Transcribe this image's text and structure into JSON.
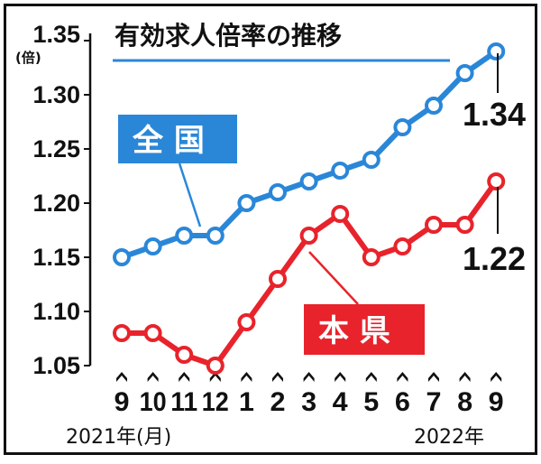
{
  "chart_data": {
    "type": "line",
    "title": "有効求人倍率の推移",
    "y_unit": "(倍)",
    "ylim": [
      1.05,
      1.35
    ],
    "yticks": [
      "1.35",
      "1.30",
      "1.25",
      "1.20",
      "1.15",
      "1.10",
      "1.05"
    ],
    "categories": [
      "9",
      "10",
      "11",
      "12",
      "1",
      "2",
      "3",
      "4",
      "5",
      "6",
      "7",
      "8",
      "9"
    ],
    "x_year_labels": {
      "start": "2021年(月)",
      "end": "2022年"
    },
    "grid": false,
    "series": [
      {
        "name": "全 国",
        "color": "#2a87d8",
        "values": [
          1.15,
          1.16,
          1.17,
          1.17,
          1.2,
          1.21,
          1.22,
          1.23,
          1.24,
          1.27,
          1.29,
          1.32,
          1.34
        ],
        "end_label": "1.34"
      },
      {
        "name": "本 県",
        "color": "#e8232b",
        "values": [
          1.08,
          1.08,
          1.06,
          1.05,
          1.09,
          1.13,
          1.17,
          1.19,
          1.15,
          1.16,
          1.18,
          1.18,
          1.22
        ],
        "end_label": "1.22"
      }
    ]
  }
}
